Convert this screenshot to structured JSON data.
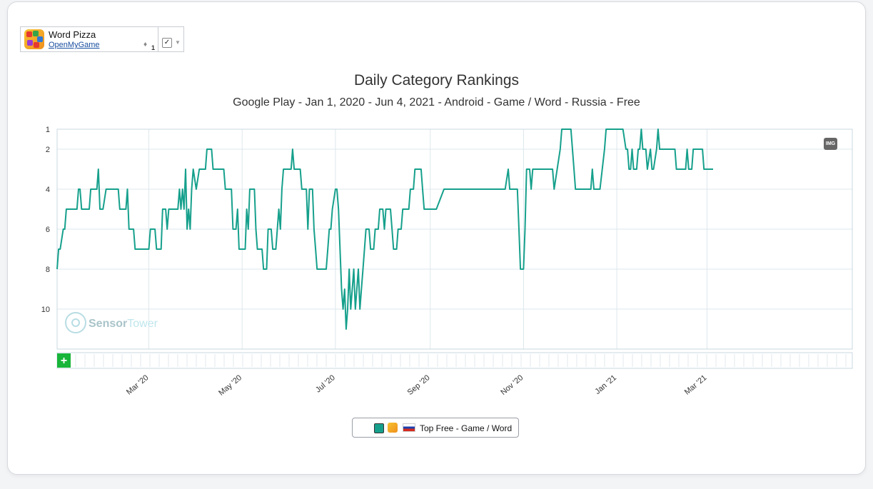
{
  "app": {
    "name": "Word Pizza",
    "developer": "OpenMyGame",
    "device_count": "1",
    "checkbox_mark": "✓",
    "caret": "▼",
    "android_glyph": "♦"
  },
  "badge": {
    "label": "IMG"
  },
  "watermark": {
    "part1": "Sensor",
    "part2": "Tower"
  },
  "zoom_button": {
    "label": "+"
  },
  "legend": {
    "label": "Top Free - Game / Word",
    "swatch_color": "#16a08c"
  },
  "chart_data": {
    "type": "line",
    "title": "Daily Category Rankings",
    "subtitle": "Google Play - Jan 1, 2020 - Jun 4, 2021 - Android - Game / Word - Russia - Free",
    "x_range": [
      "2020-01-01",
      "2021-06-04"
    ],
    "y_range": [
      1,
      12
    ],
    "y_reversed": true,
    "y_ticks": [
      1,
      2,
      4,
      6,
      8,
      10
    ],
    "x_tick_labels": [
      {
        "label": "Mar '20",
        "date": "2020-03-01"
      },
      {
        "label": "May '20",
        "date": "2020-05-01"
      },
      {
        "label": "Jul '20",
        "date": "2020-07-01"
      },
      {
        "label": "Sep '20",
        "date": "2020-09-01"
      },
      {
        "label": "Nov '20",
        "date": "2020-11-01"
      },
      {
        "label": "Jan '21",
        "date": "2021-01-01"
      },
      {
        "label": "Mar '21",
        "date": "2021-03-01"
      }
    ],
    "grid": true,
    "legend_position": "bottom-center",
    "line_color": "#16a08c",
    "series": [
      {
        "name": "Top Free - Game / Word",
        "points": [
          [
            "2020-01-01",
            8
          ],
          [
            "2020-01-02",
            7
          ],
          [
            "2020-01-03",
            7
          ],
          [
            "2020-01-05",
            6
          ],
          [
            "2020-01-06",
            6
          ],
          [
            "2020-01-07",
            5
          ],
          [
            "2020-01-14",
            5
          ],
          [
            "2020-01-15",
            4
          ],
          [
            "2020-01-16",
            4
          ],
          [
            "2020-01-17",
            5
          ],
          [
            "2020-01-22",
            5
          ],
          [
            "2020-01-23",
            4
          ],
          [
            "2020-01-27",
            4
          ],
          [
            "2020-01-28",
            3
          ],
          [
            "2020-01-29",
            5
          ],
          [
            "2020-01-31",
            5
          ],
          [
            "2020-02-02",
            4
          ],
          [
            "2020-02-10",
            4
          ],
          [
            "2020-02-11",
            5
          ],
          [
            "2020-02-15",
            5
          ],
          [
            "2020-02-16",
            4
          ],
          [
            "2020-02-17",
            6
          ],
          [
            "2020-02-20",
            6
          ],
          [
            "2020-02-21",
            7
          ],
          [
            "2020-03-01",
            7
          ],
          [
            "2020-03-02",
            6
          ],
          [
            "2020-03-05",
            6
          ],
          [
            "2020-03-06",
            7
          ],
          [
            "2020-03-09",
            7
          ],
          [
            "2020-03-10",
            5
          ],
          [
            "2020-03-12",
            5
          ],
          [
            "2020-03-13",
            6
          ],
          [
            "2020-03-14",
            5
          ],
          [
            "2020-03-20",
            5
          ],
          [
            "2020-03-21",
            4
          ],
          [
            "2020-03-22",
            5
          ],
          [
            "2020-03-23",
            4
          ],
          [
            "2020-03-24",
            5
          ],
          [
            "2020-03-25",
            3
          ],
          [
            "2020-03-26",
            6
          ],
          [
            "2020-03-27",
            5
          ],
          [
            "2020-03-28",
            6
          ],
          [
            "2020-03-29",
            4
          ],
          [
            "2020-03-30",
            3
          ],
          [
            "2020-04-01",
            4
          ],
          [
            "2020-04-03",
            3
          ],
          [
            "2020-04-07",
            3
          ],
          [
            "2020-04-08",
            2
          ],
          [
            "2020-04-11",
            2
          ],
          [
            "2020-04-12",
            3
          ],
          [
            "2020-04-19",
            3
          ],
          [
            "2020-04-20",
            4
          ],
          [
            "2020-04-24",
            4
          ],
          [
            "2020-04-25",
            6
          ],
          [
            "2020-04-27",
            6
          ],
          [
            "2020-04-28",
            5
          ],
          [
            "2020-04-29",
            7
          ],
          [
            "2020-05-03",
            7
          ],
          [
            "2020-05-04",
            5
          ],
          [
            "2020-05-05",
            6
          ],
          [
            "2020-05-06",
            4
          ],
          [
            "2020-05-09",
            4
          ],
          [
            "2020-05-10",
            6
          ],
          [
            "2020-05-11",
            7
          ],
          [
            "2020-05-14",
            7
          ],
          [
            "2020-05-15",
            8
          ],
          [
            "2020-05-17",
            8
          ],
          [
            "2020-05-18",
            6
          ],
          [
            "2020-05-20",
            6
          ],
          [
            "2020-05-21",
            7
          ],
          [
            "2020-05-23",
            7
          ],
          [
            "2020-05-24",
            6
          ],
          [
            "2020-05-25",
            5
          ],
          [
            "2020-05-26",
            6
          ],
          [
            "2020-05-27",
            4
          ],
          [
            "2020-05-28",
            3
          ],
          [
            "2020-06-02",
            3
          ],
          [
            "2020-06-03",
            2
          ],
          [
            "2020-06-04",
            3
          ],
          [
            "2020-06-08",
            3
          ],
          [
            "2020-06-09",
            4
          ],
          [
            "2020-06-12",
            4
          ],
          [
            "2020-06-13",
            6
          ],
          [
            "2020-06-14",
            4
          ],
          [
            "2020-06-16",
            4
          ],
          [
            "2020-06-17",
            6
          ],
          [
            "2020-06-18",
            7
          ],
          [
            "2020-06-19",
            8
          ],
          [
            "2020-06-25",
            8
          ],
          [
            "2020-06-26",
            7
          ],
          [
            "2020-06-27",
            6
          ],
          [
            "2020-06-28",
            6
          ],
          [
            "2020-06-29",
            5
          ],
          [
            "2020-07-01",
            4
          ],
          [
            "2020-07-02",
            4
          ],
          [
            "2020-07-03",
            5
          ],
          [
            "2020-07-05",
            9
          ],
          [
            "2020-07-06",
            10
          ],
          [
            "2020-07-07",
            9
          ],
          [
            "2020-07-08",
            11
          ],
          [
            "2020-07-09",
            10
          ],
          [
            "2020-07-10",
            8
          ],
          [
            "2020-07-11",
            10
          ],
          [
            "2020-07-12",
            9
          ],
          [
            "2020-07-13",
            8
          ],
          [
            "2020-07-14",
            10
          ],
          [
            "2020-07-15",
            9
          ],
          [
            "2020-07-16",
            8
          ],
          [
            "2020-07-17",
            10
          ],
          [
            "2020-07-18",
            9
          ],
          [
            "2020-07-19",
            8
          ],
          [
            "2020-07-20",
            7
          ],
          [
            "2020-07-21",
            6
          ],
          [
            "2020-07-23",
            6
          ],
          [
            "2020-07-24",
            7
          ],
          [
            "2020-07-26",
            7
          ],
          [
            "2020-07-27",
            6
          ],
          [
            "2020-07-29",
            6
          ],
          [
            "2020-07-30",
            5
          ],
          [
            "2020-08-01",
            5
          ],
          [
            "2020-08-02",
            6
          ],
          [
            "2020-08-03",
            5
          ],
          [
            "2020-08-06",
            5
          ],
          [
            "2020-08-07",
            6
          ],
          [
            "2020-08-08",
            7
          ],
          [
            "2020-08-10",
            7
          ],
          [
            "2020-08-11",
            6
          ],
          [
            "2020-08-13",
            6
          ],
          [
            "2020-08-14",
            5
          ],
          [
            "2020-08-18",
            5
          ],
          [
            "2020-08-19",
            4
          ],
          [
            "2020-08-21",
            4
          ],
          [
            "2020-08-22",
            3
          ],
          [
            "2020-08-25",
            3
          ],
          [
            "2020-08-26",
            3
          ],
          [
            "2020-08-27",
            4
          ],
          [
            "2020-08-28",
            5
          ],
          [
            "2020-09-05",
            5
          ],
          [
            "2020-09-10",
            4
          ],
          [
            "2020-10-20",
            4
          ],
          [
            "2020-10-22",
            3
          ],
          [
            "2020-10-23",
            4
          ],
          [
            "2020-10-28",
            4
          ],
          [
            "2020-10-29",
            6
          ],
          [
            "2020-10-30",
            8
          ],
          [
            "2020-11-01",
            8
          ],
          [
            "2020-11-02",
            6
          ],
          [
            "2020-11-03",
            3
          ],
          [
            "2020-11-05",
            3
          ],
          [
            "2020-11-06",
            4
          ],
          [
            "2020-11-07",
            3
          ],
          [
            "2020-11-20",
            3
          ],
          [
            "2020-11-21",
            4
          ],
          [
            "2020-11-25",
            2
          ],
          [
            "2020-11-26",
            1
          ],
          [
            "2020-12-02",
            1
          ],
          [
            "2020-12-04",
            3
          ],
          [
            "2020-12-05",
            4
          ],
          [
            "2020-12-15",
            4
          ],
          [
            "2020-12-16",
            3
          ],
          [
            "2020-12-17",
            4
          ],
          [
            "2020-12-21",
            4
          ],
          [
            "2020-12-24",
            2
          ],
          [
            "2020-12-25",
            1
          ],
          [
            "2021-01-05",
            1
          ],
          [
            "2021-01-07",
            2
          ],
          [
            "2021-01-08",
            2
          ],
          [
            "2021-01-09",
            3
          ],
          [
            "2021-01-10",
            3
          ],
          [
            "2021-01-11",
            2
          ],
          [
            "2021-01-12",
            3
          ],
          [
            "2021-01-14",
            3
          ],
          [
            "2021-01-15",
            2
          ],
          [
            "2021-01-16",
            2
          ],
          [
            "2021-01-17",
            1
          ],
          [
            "2021-01-18",
            2
          ],
          [
            "2021-01-20",
            2
          ],
          [
            "2021-01-21",
            3
          ],
          [
            "2021-01-23",
            2
          ],
          [
            "2021-01-24",
            3
          ],
          [
            "2021-01-25",
            3
          ],
          [
            "2021-01-27",
            2
          ],
          [
            "2021-01-28",
            1
          ],
          [
            "2021-01-29",
            2
          ],
          [
            "2021-02-08",
            2
          ],
          [
            "2021-02-09",
            3
          ],
          [
            "2021-02-15",
            3
          ],
          [
            "2021-02-16",
            2
          ],
          [
            "2021-02-17",
            3
          ],
          [
            "2021-02-19",
            3
          ],
          [
            "2021-02-20",
            2
          ],
          [
            "2021-02-24",
            2
          ],
          [
            "2021-02-26",
            2
          ],
          [
            "2021-02-27",
            3
          ],
          [
            "2021-03-05",
            3
          ]
        ]
      }
    ]
  }
}
